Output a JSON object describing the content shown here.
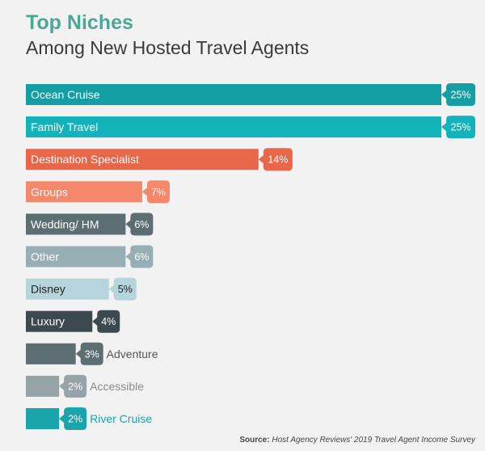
{
  "header": {
    "title": "Top Niches",
    "subtitle": "Among New Hosted Travel Agents"
  },
  "source": {
    "label": "Source:",
    "text": "Host Agency Reviews' 2019 Travel Agent Income Survey"
  },
  "chart_data": {
    "type": "bar",
    "orientation": "horizontal",
    "title": "Top Niches",
    "subtitle": "Among New Hosted Travel Agents",
    "categories": [
      "Ocean Cruise",
      "Family Travel",
      "Destination Specialist",
      "Groups",
      "Wedding/ HM",
      "Other",
      "Disney",
      "Luxury",
      "Adventure",
      "Accessible",
      "River Cruise"
    ],
    "values": [
      25,
      25,
      14,
      7,
      6,
      6,
      5,
      4,
      3,
      2,
      2
    ],
    "value_labels": [
      "25%",
      "25%",
      "14%",
      "7%",
      "6%",
      "6%",
      "5%",
      "4%",
      "3%",
      "2%",
      "2%"
    ],
    "label_position": [
      "inside",
      "inside",
      "inside",
      "inside",
      "inside",
      "inside",
      "inside",
      "inside",
      "outside",
      "outside",
      "outside"
    ],
    "colors": [
      "#139ea3",
      "#12b3bb",
      "#e8674b",
      "#f5876a",
      "#5d6e73",
      "#96aeb4",
      "#b6d4dc",
      "#3c4a50",
      "#5d6e73",
      "#96a3a7",
      "#1aa5aa"
    ],
    "outside_label_colors": [
      "#555555",
      "#8a8a8a",
      "#1aa5aa"
    ],
    "xlim": [
      0,
      25
    ],
    "grid": false,
    "legend": "none"
  }
}
